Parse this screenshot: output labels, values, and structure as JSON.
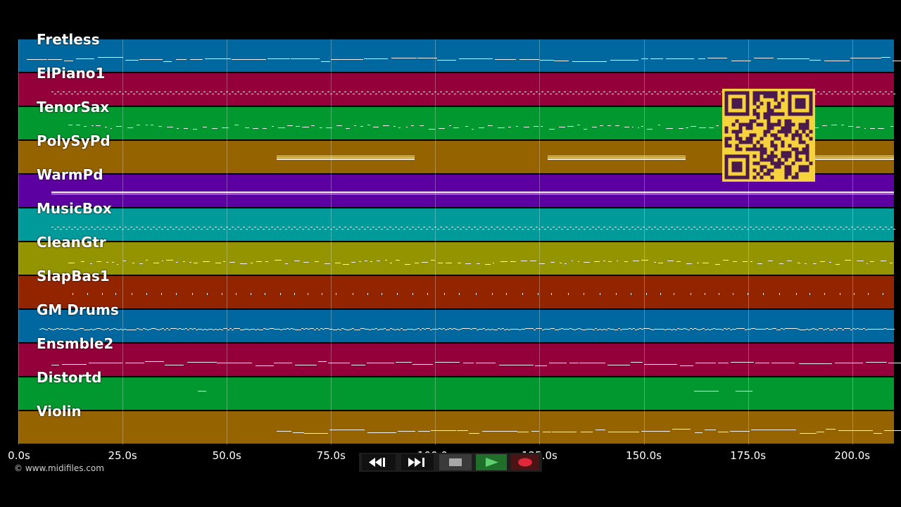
{
  "tracks": [
    {
      "name": "Fretless",
      "color": "#00689e",
      "pattern": "steps",
      "span": [
        2.0,
        210.0
      ]
    },
    {
      "name": "ElPiano1",
      "color": "#93003a",
      "pattern": "zigzag",
      "span": [
        8.0,
        210.0
      ]
    },
    {
      "name": "TenorSax",
      "color": "#00982f",
      "pattern": "dots",
      "span": [
        12.0,
        210.0
      ]
    },
    {
      "name": "PolySyPd",
      "color": "#956300",
      "pattern": "blocks",
      "span": [
        62.0,
        210.0
      ]
    },
    {
      "name": "WarmPd",
      "color": "#5d00a2",
      "pattern": "lines",
      "span": [
        8.0,
        210.0
      ]
    },
    {
      "name": "MusicBox",
      "color": "#009a9a",
      "pattern": "zigzag",
      "span": [
        8.0,
        210.0
      ]
    },
    {
      "name": "CleanGtr",
      "color": "#949400",
      "pattern": "dots",
      "span": [
        12.0,
        210.0
      ]
    },
    {
      "name": "SlapBas1",
      "color": "#932400",
      "pattern": "sparse",
      "span": [
        13.0,
        210.0
      ]
    },
    {
      "name": "GM Drums",
      "color": "#00689e",
      "pattern": "dense",
      "span": [
        5.0,
        210.0
      ]
    },
    {
      "name": "Ensmble2",
      "color": "#93003a",
      "pattern": "steps",
      "span": [
        8.0,
        210.0
      ]
    },
    {
      "name": "Distortd",
      "color": "#00982f",
      "pattern": "few",
      "span": [
        43.0,
        178.0
      ]
    },
    {
      "name": "Violin",
      "color": "#956300",
      "pattern": "steps2",
      "span": [
        62.0,
        210.0
      ]
    }
  ],
  "timeline": {
    "min": 0,
    "max": 210,
    "ticks": [
      "0.0s",
      "25.0s",
      "50.0s",
      "75.0s",
      "100.0s",
      "125.0s",
      "150.0s",
      "175.0s",
      "200.0s"
    ],
    "tick_values": [
      0,
      25,
      50,
      75,
      100,
      125,
      150,
      175,
      200
    ]
  },
  "copyright": "© www.midifiles.com",
  "transport": {
    "rewind_icon": "rewind-icon",
    "forward_icon": "fast-forward-icon",
    "stop_icon": "stop-icon",
    "play_icon": "play-icon",
    "record_icon": "record-icon"
  },
  "qr_code": {
    "icon": "qr-code-icon",
    "color": "#f6d33c",
    "dark": "#4a1a4e"
  }
}
